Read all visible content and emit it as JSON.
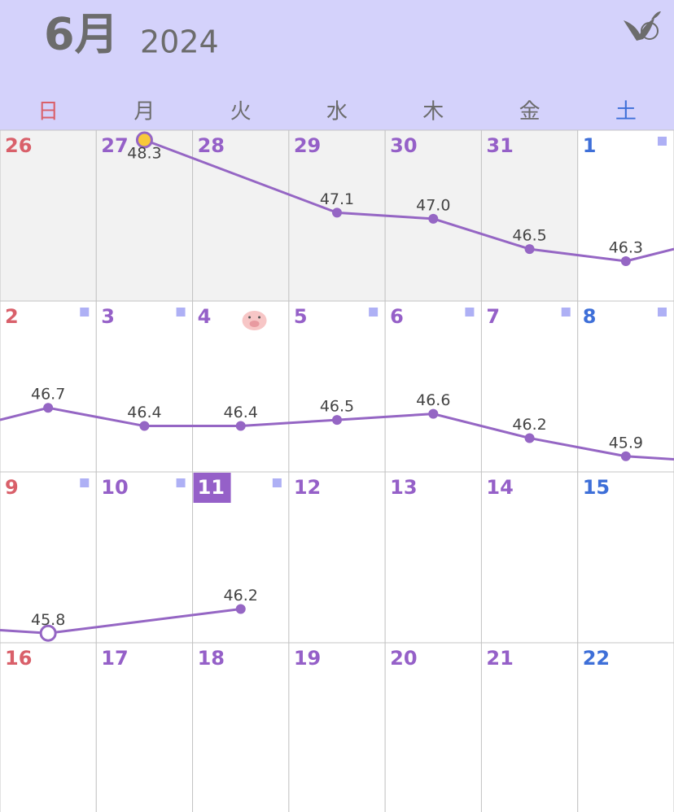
{
  "header": {
    "month": "6月",
    "year": "2024"
  },
  "weekdays": [
    "日",
    "月",
    "火",
    "水",
    "木",
    "金",
    "土"
  ],
  "weeks": [
    [
      {
        "day": "26",
        "other_month": true
      },
      {
        "day": "27",
        "other_month": true,
        "weight": 48.3,
        "marker": "start"
      },
      {
        "day": "28",
        "other_month": true
      },
      {
        "day": "29",
        "other_month": true,
        "weight": 47.1
      },
      {
        "day": "30",
        "other_month": true,
        "weight": 47,
        "weight_label": "47.0"
      },
      {
        "day": "31",
        "other_month": true,
        "weight": 46.5
      },
      {
        "day": "1",
        "note": true,
        "weight": 46.3
      }
    ],
    [
      {
        "day": "2",
        "note": true,
        "weight": 46.7
      },
      {
        "day": "3",
        "note": true,
        "weight": 46.4
      },
      {
        "day": "4",
        "pig": true,
        "weight": 46.4
      },
      {
        "day": "5",
        "note": true,
        "weight": 46.5
      },
      {
        "day": "6",
        "note": true,
        "weight": 46.6
      },
      {
        "day": "7",
        "note": true,
        "weight": 46.2
      },
      {
        "day": "8",
        "note": true,
        "weight": 45.9
      }
    ],
    [
      {
        "day": "9",
        "note": true,
        "weight": 45.8,
        "marker": "hollow"
      },
      {
        "day": "10",
        "note": true
      },
      {
        "day": "11",
        "note": true,
        "today": true,
        "weight": 46.2
      },
      {
        "day": "12"
      },
      {
        "day": "13"
      },
      {
        "day": "14"
      },
      {
        "day": "15"
      }
    ],
    [
      {
        "day": "16"
      },
      {
        "day": "17"
      },
      {
        "day": "18"
      },
      {
        "day": "19"
      },
      {
        "day": "20"
      },
      {
        "day": "21"
      },
      {
        "day": "22"
      }
    ]
  ]
}
